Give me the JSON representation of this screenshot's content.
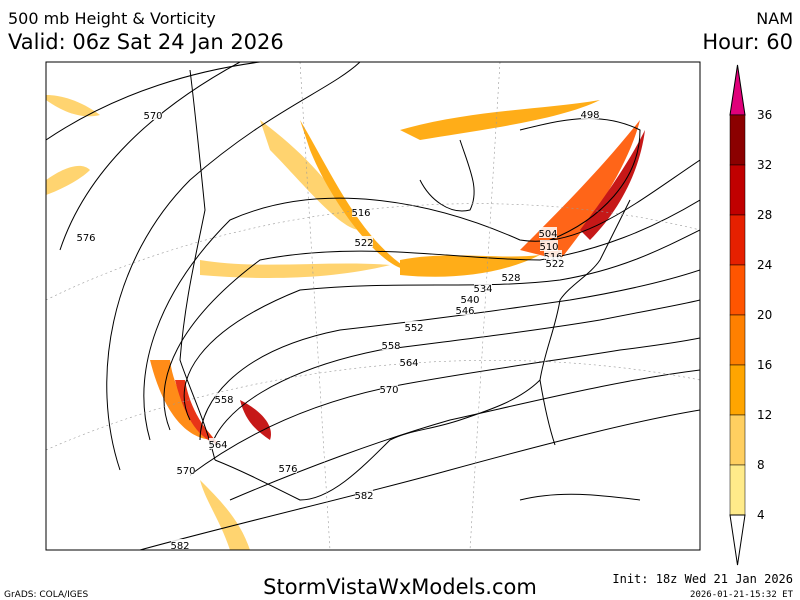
{
  "header": {
    "title": "500 mb Height & Vorticity",
    "valid": "Valid: 06z Sat 24 Jan 2026",
    "model": "NAM",
    "hour": "Hour: 60"
  },
  "colorbar": {
    "labels": [
      "36",
      "32",
      "28",
      "24",
      "20",
      "16",
      "12",
      "8",
      "4"
    ]
  },
  "contour_labels": [
    "570",
    "576",
    "516",
    "522",
    "498",
    "504",
    "510",
    "516",
    "522",
    "528",
    "534",
    "540",
    "546",
    "552",
    "558",
    "564",
    "570",
    "558",
    "564",
    "570",
    "576",
    "582",
    "582"
  ],
  "footer": {
    "credit": "GrADS: COLA/IGES",
    "site": "StormVistaWxModels.com",
    "init": "Init: 18z Wed 21 Jan 2026",
    "timestamp": "2026-01-21-15:32 ET"
  }
}
